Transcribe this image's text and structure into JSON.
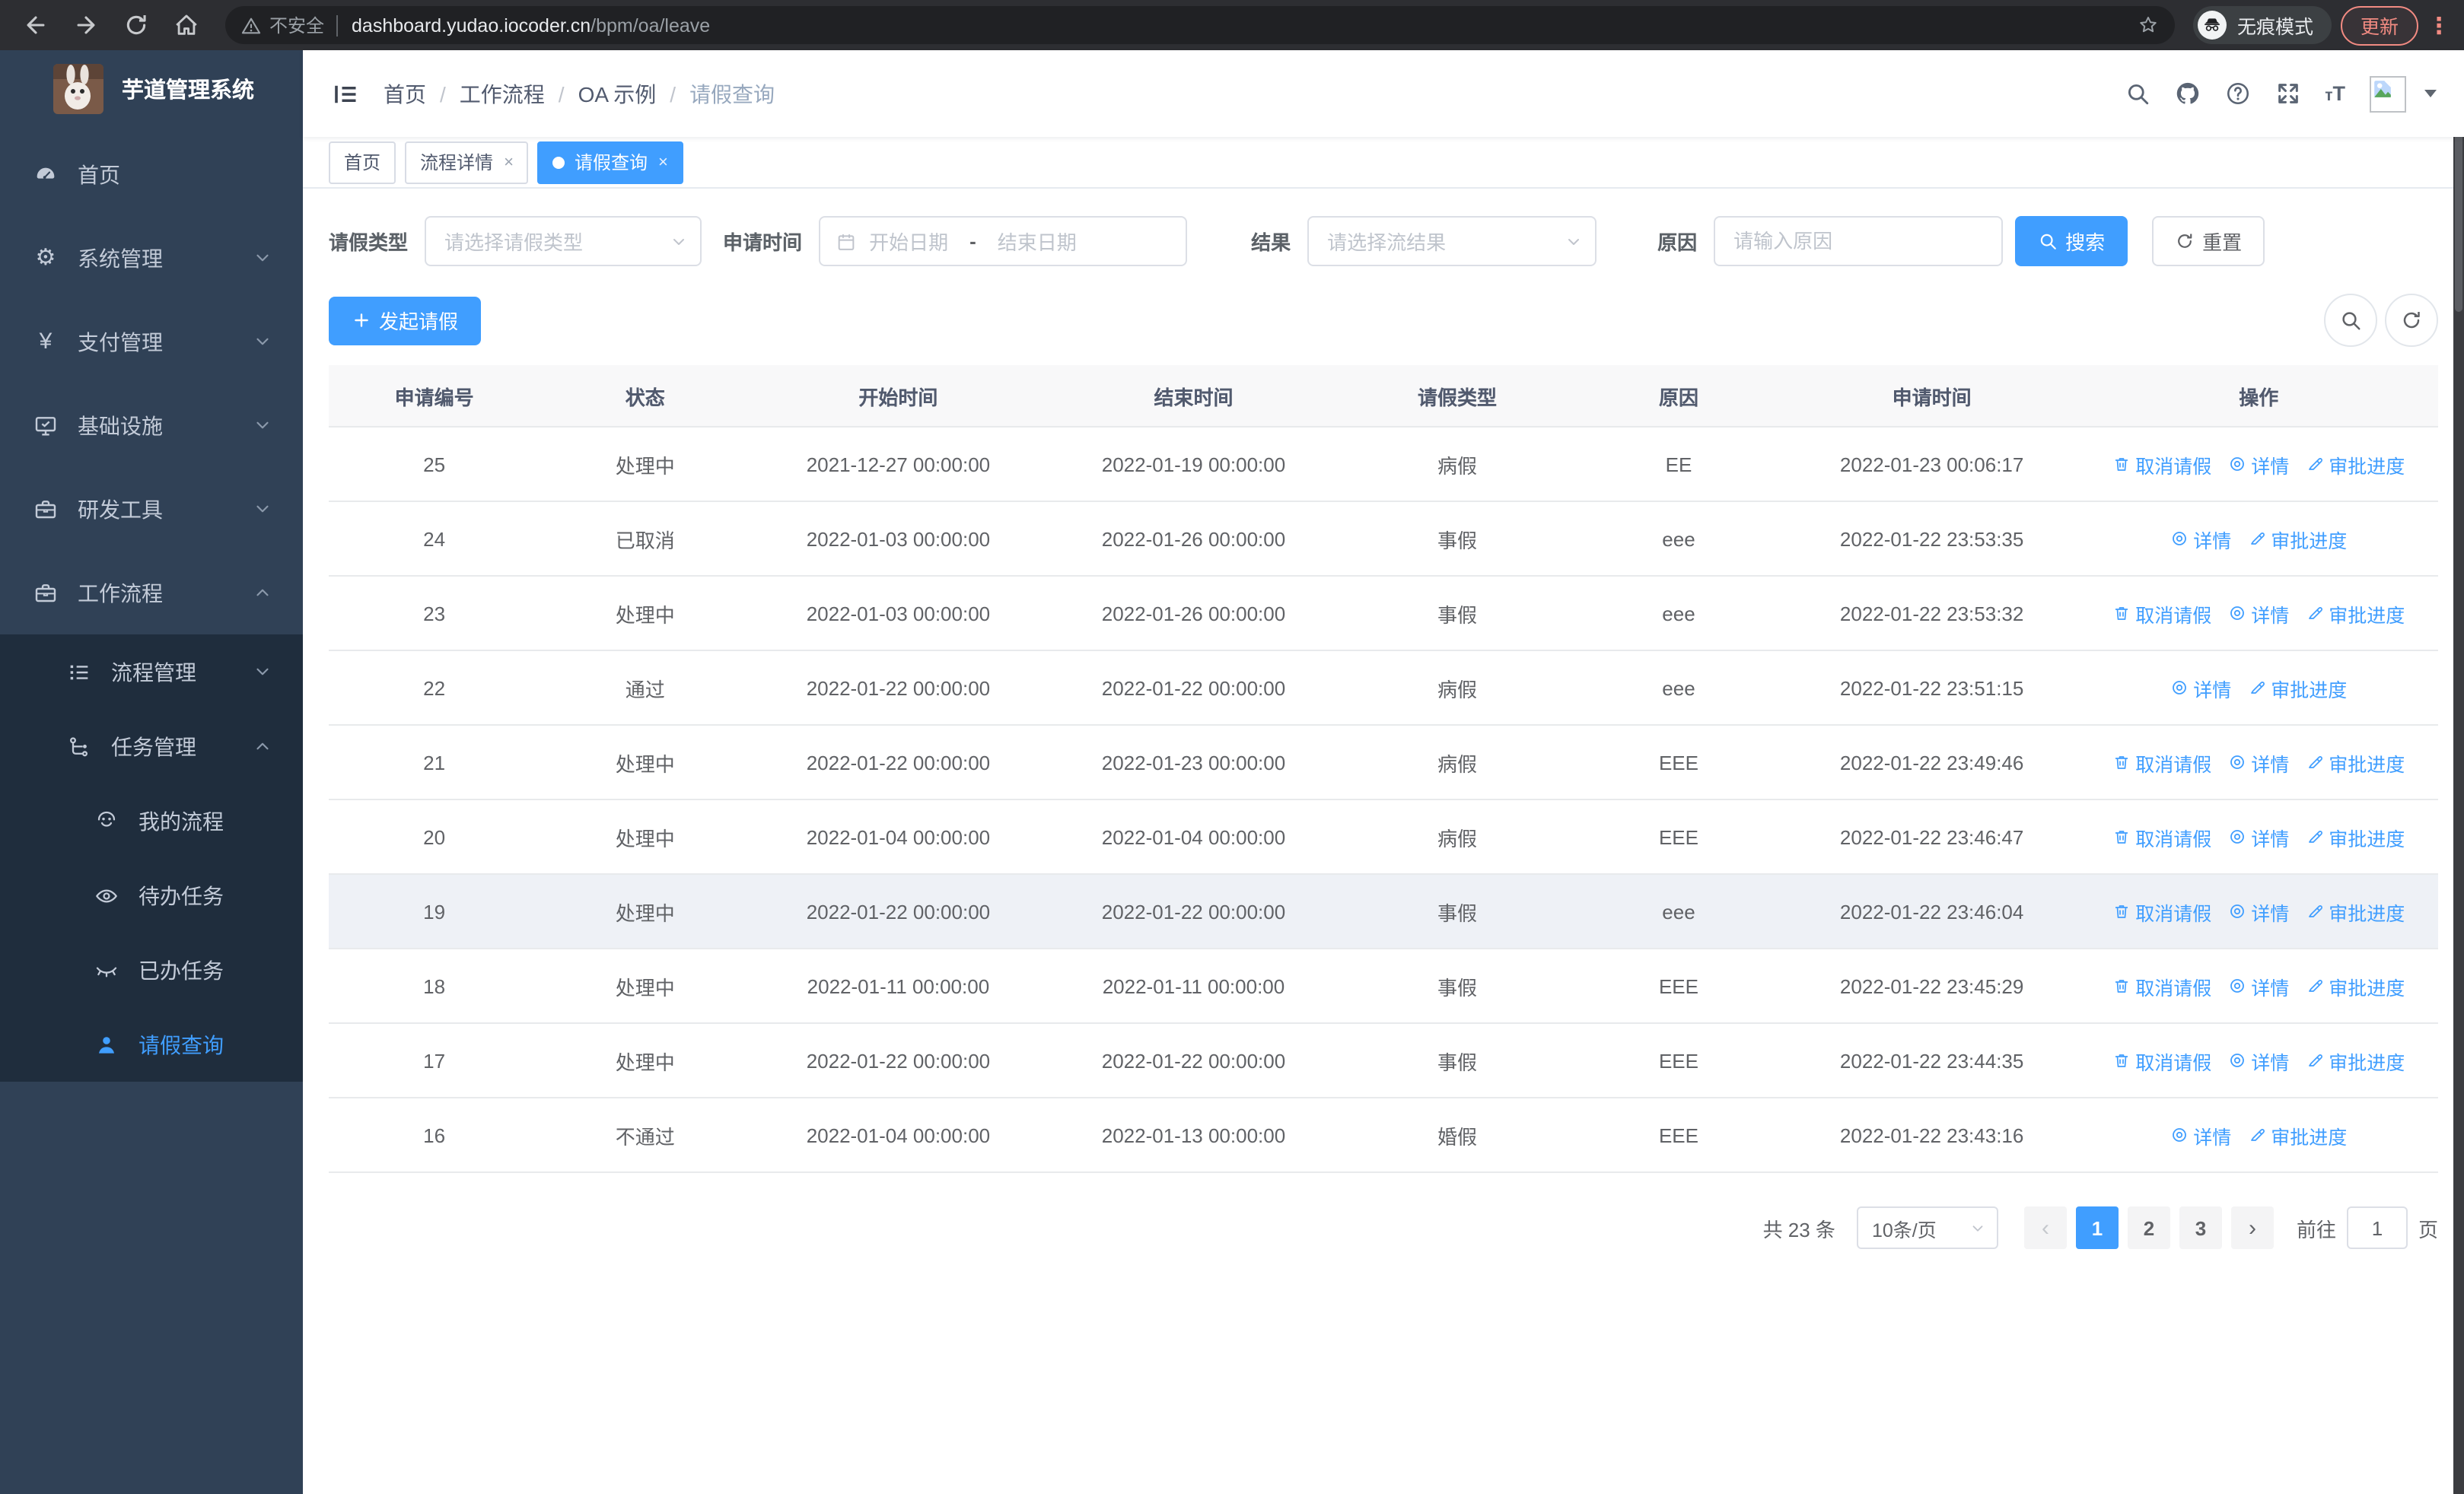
{
  "browser": {
    "security_label": "不安全",
    "url_domain": "dashboard.yudao.iocoder.cn",
    "url_path": "/bpm/oa/leave",
    "incognito_label": "无痕模式",
    "update_label": "更新",
    "nav_icons": [
      "back",
      "forward",
      "reload",
      "home"
    ]
  },
  "sidebar": {
    "title": "芋道管理系统",
    "items": [
      {
        "key": "home",
        "label": "首页",
        "icon": "dashboard"
      },
      {
        "key": "system",
        "label": "系统管理",
        "icon": "gear",
        "chevron": "down"
      },
      {
        "key": "payment",
        "label": "支付管理",
        "icon": "yen",
        "chevron": "down"
      },
      {
        "key": "infrastructure",
        "label": "基础设施",
        "icon": "monitor",
        "chevron": "down"
      },
      {
        "key": "devtools",
        "label": "研发工具",
        "icon": "toolbox",
        "chevron": "down"
      },
      {
        "key": "workflow",
        "label": "工作流程",
        "icon": "briefcase",
        "chevron": "up",
        "children": [
          {
            "key": "process-mgmt",
            "label": "流程管理",
            "icon": "list",
            "chevron": "down"
          },
          {
            "key": "task-mgmt",
            "label": "任务管理",
            "icon": "flow",
            "chevron": "up",
            "children": [
              {
                "key": "my-process",
                "label": "我的流程",
                "icon": "robot"
              },
              {
                "key": "todo-task",
                "label": "待办任务",
                "icon": "eye"
              },
              {
                "key": "done-task",
                "label": "已办任务",
                "icon": "eye-closed"
              },
              {
                "key": "leave-query",
                "label": "请假查询",
                "icon": "user",
                "active": true
              }
            ]
          }
        ]
      }
    ]
  },
  "header": {
    "breadcrumb": [
      "首页",
      "工作流程",
      "OA 示例",
      "请假查询"
    ],
    "tool_icons": [
      "search",
      "github",
      "help",
      "fullscreen"
    ]
  },
  "tabs": [
    {
      "label": "首页",
      "closable": false,
      "active": false,
      "dot": false
    },
    {
      "label": "流程详情",
      "closable": true,
      "active": false,
      "dot": false
    },
    {
      "label": "请假查询",
      "closable": true,
      "active": true,
      "dot": true
    }
  ],
  "filters": {
    "leave_type": {
      "label": "请假类型",
      "placeholder": "请选择请假类型"
    },
    "apply_time": {
      "label": "申请时间",
      "start_placeholder": "开始日期",
      "separator": "-",
      "end_placeholder": "结束日期"
    },
    "result": {
      "label": "结果",
      "placeholder": "请选择流结果"
    },
    "reason": {
      "label": "原因",
      "placeholder": "请输入原因"
    },
    "search_label": "搜索",
    "reset_label": "重置"
  },
  "toolbar": {
    "create_label": "发起请假"
  },
  "table": {
    "headers": [
      "申请编号",
      "状态",
      "开始时间",
      "结束时间",
      "请假类型",
      "原因",
      "申请时间",
      "操作"
    ],
    "action_labels": {
      "cancel": "取消请假",
      "detail": "详情",
      "progress": "审批进度"
    },
    "rows": [
      {
        "id": "25",
        "status": "处理中",
        "start": "2021-12-27 00:00:00",
        "end": "2022-01-19 00:00:00",
        "type": "病假",
        "reason": "EE",
        "apply_time": "2022-01-23 00:06:17",
        "can_cancel": true,
        "highlight": false
      },
      {
        "id": "24",
        "status": "已取消",
        "start": "2022-01-03 00:00:00",
        "end": "2022-01-26 00:00:00",
        "type": "事假",
        "reason": "eee",
        "apply_time": "2022-01-22 23:53:35",
        "can_cancel": false,
        "highlight": false
      },
      {
        "id": "23",
        "status": "处理中",
        "start": "2022-01-03 00:00:00",
        "end": "2022-01-26 00:00:00",
        "type": "事假",
        "reason": "eee",
        "apply_time": "2022-01-22 23:53:32",
        "can_cancel": true,
        "highlight": false
      },
      {
        "id": "22",
        "status": "通过",
        "start": "2022-01-22 00:00:00",
        "end": "2022-01-22 00:00:00",
        "type": "病假",
        "reason": "eee",
        "apply_time": "2022-01-22 23:51:15",
        "can_cancel": false,
        "highlight": false
      },
      {
        "id": "21",
        "status": "处理中",
        "start": "2022-01-22 00:00:00",
        "end": "2022-01-23 00:00:00",
        "type": "病假",
        "reason": "EEE",
        "apply_time": "2022-01-22 23:49:46",
        "can_cancel": true,
        "highlight": false
      },
      {
        "id": "20",
        "status": "处理中",
        "start": "2022-01-04 00:00:00",
        "end": "2022-01-04 00:00:00",
        "type": "病假",
        "reason": "EEE",
        "apply_time": "2022-01-22 23:46:47",
        "can_cancel": true,
        "highlight": false
      },
      {
        "id": "19",
        "status": "处理中",
        "start": "2022-01-22 00:00:00",
        "end": "2022-01-22 00:00:00",
        "type": "事假",
        "reason": "eee",
        "apply_time": "2022-01-22 23:46:04",
        "can_cancel": true,
        "highlight": true
      },
      {
        "id": "18",
        "status": "处理中",
        "start": "2022-01-11 00:00:00",
        "end": "2022-01-11 00:00:00",
        "type": "事假",
        "reason": "EEE",
        "apply_time": "2022-01-22 23:45:29",
        "can_cancel": true,
        "highlight": false
      },
      {
        "id": "17",
        "status": "处理中",
        "start": "2022-01-22 00:00:00",
        "end": "2022-01-22 00:00:00",
        "type": "事假",
        "reason": "EEE",
        "apply_time": "2022-01-22 23:44:35",
        "can_cancel": true,
        "highlight": false
      },
      {
        "id": "16",
        "status": "不通过",
        "start": "2022-01-04 00:00:00",
        "end": "2022-01-13 00:00:00",
        "type": "婚假",
        "reason": "EEE",
        "apply_time": "2022-01-22 23:43:16",
        "can_cancel": false,
        "highlight": false
      }
    ]
  },
  "pagination": {
    "total_label": "共 23 条",
    "page_size_label": "10条/页",
    "pages": [
      "1",
      "2",
      "3"
    ],
    "active_page": "1",
    "goto_label": "前往",
    "goto_value": "1",
    "page_unit": "页"
  },
  "colors": {
    "accent": "#409eff",
    "sidebar_bg": "#304156",
    "submenu_bg": "#1f2d3d",
    "link": "#409eff",
    "update_button": "#f28b82",
    "table_header_bg": "#f8f8f9"
  }
}
